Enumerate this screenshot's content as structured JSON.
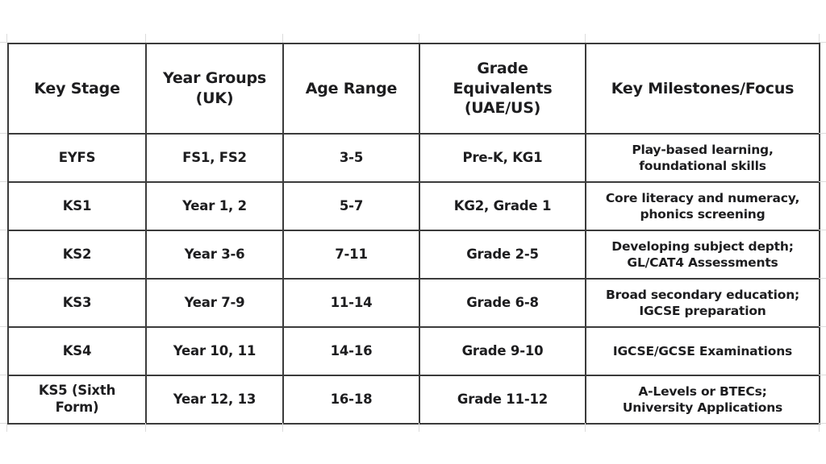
{
  "table": {
    "columns": [
      "Key Stage",
      "Year Groups\n(UK)",
      "Age Range",
      "Grade\nEquivalents\n(UAE/US)",
      "Key Milestones/Focus"
    ],
    "rows": [
      {
        "key_stage": "EYFS",
        "year_groups": "FS1, FS2",
        "age_range": "3-5",
        "grade_equivalents": "Pre-K, KG1",
        "milestones": "Play-based learning,\nfoundational skills"
      },
      {
        "key_stage": "KS1",
        "year_groups": "Year 1, 2",
        "age_range": "5-7",
        "grade_equivalents": "KG2, Grade 1",
        "milestones": "Core literacy and numeracy,\nphonics screening"
      },
      {
        "key_stage": "KS2",
        "year_groups": "Year 3-6",
        "age_range": "7-11",
        "grade_equivalents": "Grade 2-5",
        "milestones": "Developing subject depth;\nGL/CAT4 Assessments"
      },
      {
        "key_stage": "KS3",
        "year_groups": "Year 7-9",
        "age_range": "11-14",
        "grade_equivalents": "Grade 6-8",
        "milestones": "Broad secondary education;\nIGCSE preparation"
      },
      {
        "key_stage": "KS4",
        "year_groups": "Year 10, 11",
        "age_range": "14-16",
        "grade_equivalents": "Grade 9-10",
        "milestones": "IGCSE/GCSE Examinations"
      },
      {
        "key_stage": "KS5 (Sixth Form)",
        "year_groups": "Year 12, 13",
        "age_range": "16-18",
        "grade_equivalents": "Grade 11-12",
        "milestones": "A-Levels or BTECs;\nUniversity Applications"
      }
    ]
  },
  "colors": {
    "text": "#1d1d1f",
    "border": "#3b3b3b",
    "grid_bleed": "#dcdcdc",
    "background": "#ffffff"
  }
}
